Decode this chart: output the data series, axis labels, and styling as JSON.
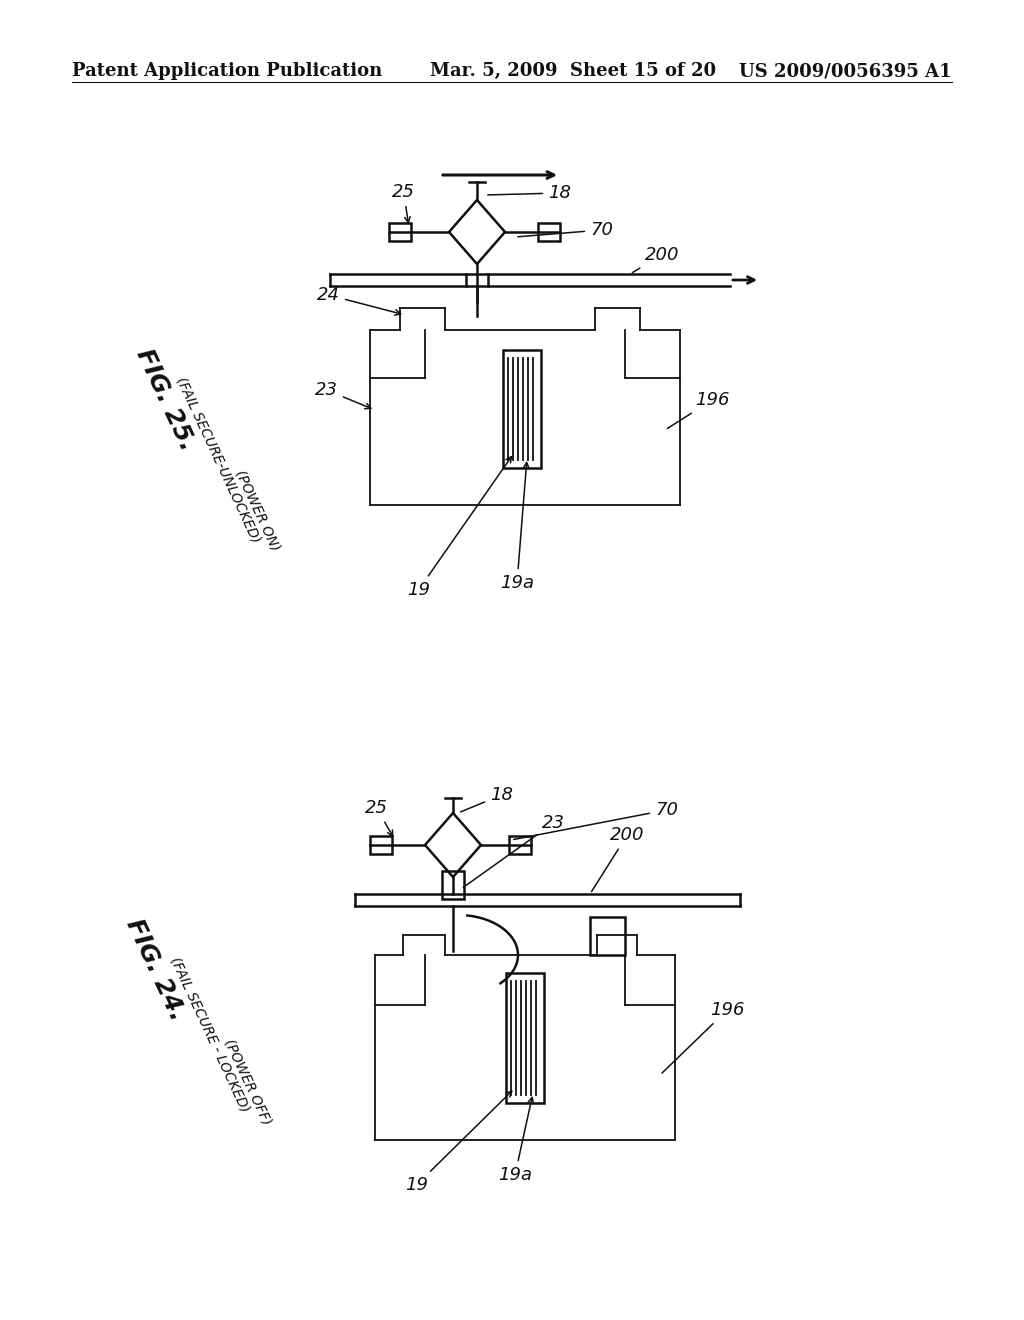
{
  "bg_color": "#ffffff",
  "header": {
    "left": "Patent Application Publication",
    "center": "Mar. 5, 2009  Sheet 15 of 20",
    "right": "US 2009/0056395 A1",
    "y": 62,
    "fontsize": 13
  }
}
